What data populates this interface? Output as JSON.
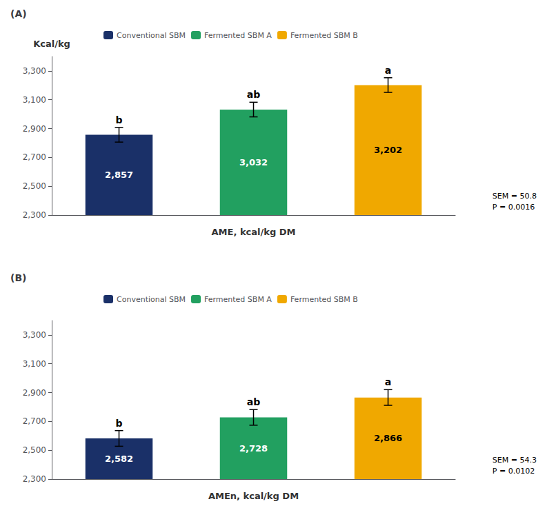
{
  "chart_data": [
    {
      "type": "bar",
      "title": "(A)",
      "xlabel": "AME, kcal/kg DM",
      "ylabel": "Kcal/kg",
      "categories": [
        null,
        null,
        null
      ],
      "series": [
        {
          "name": "Conventional SBM",
          "color": "#1a3068",
          "values": [
            2857,
            null,
            null
          ],
          "value_labels": [
            "2,857",
            null,
            null
          ],
          "errors": [
            50.8,
            null,
            null
          ],
          "sig_labels": [
            "b",
            null,
            null
          ]
        },
        {
          "name": "Fermented SBM A",
          "color": "#22a060",
          "values": [
            null,
            3032,
            null
          ],
          "value_labels": [
            null,
            "3,032",
            null
          ],
          "errors": [
            null,
            50.8,
            null
          ],
          "sig_labels": [
            null,
            "ab",
            null
          ]
        },
        {
          "name": "Fermented SBM B",
          "color": "#f0a800",
          "values": [
            null,
            null,
            3202
          ],
          "value_labels": [
            null,
            null,
            "3,202"
          ],
          "errors": [
            null,
            null,
            50.8
          ],
          "sig_labels": [
            null,
            null,
            "a"
          ]
        }
      ],
      "ylim": [
        2300,
        3400
      ],
      "yticks": [
        2300,
        2500,
        2700,
        2900,
        3100,
        3300
      ],
      "annotations": [
        "SEM = 50.8",
        "P = 0.0016"
      ],
      "data_labels": true,
      "legend": "upper left",
      "grid": false,
      "tick_labels": "y"
    },
    {
      "type": "bar",
      "title": "(B)",
      "xlabel": "AMEn, kcal/kg DM",
      "categories": [
        null,
        null,
        null
      ],
      "series": [
        {
          "name": "Conventional SBM",
          "color": "#1a3068",
          "values": [
            2582,
            null,
            null
          ],
          "value_labels": [
            "2,582",
            null,
            null
          ],
          "errors": [
            54.3,
            null,
            null
          ],
          "sig_labels": [
            "b",
            null,
            null
          ]
        },
        {
          "name": "Fermented SBM A",
          "color": "#22a060",
          "values": [
            null,
            2728,
            null
          ],
          "value_labels": [
            null,
            "2,728",
            null
          ],
          "errors": [
            null,
            54.3,
            null
          ],
          "sig_labels": [
            null,
            "ab",
            null
          ]
        },
        {
          "name": "Fermented SBM B",
          "color": "#f0a800",
          "values": [
            null,
            null,
            2866
          ],
          "value_labels": [
            null,
            null,
            "2,866"
          ],
          "errors": [
            null,
            null,
            54.3
          ],
          "sig_labels": [
            null,
            null,
            "a"
          ]
        }
      ],
      "ylim": [
        2300,
        3400
      ],
      "yticks": [
        2300,
        2500,
        2700,
        2900,
        3100,
        3300
      ],
      "annotations": [
        "SEM = 54.3",
        "P = 0.0102"
      ],
      "data_labels": true,
      "legend": "upper left",
      "grid": false,
      "tick_labels": "y"
    }
  ]
}
